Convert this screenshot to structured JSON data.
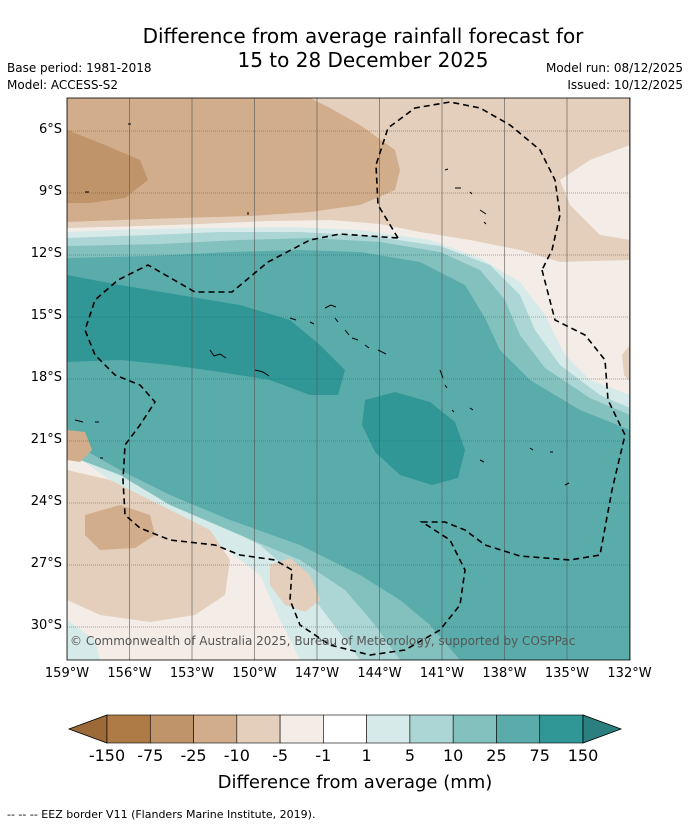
{
  "title": {
    "line1": "Difference from average rainfall forecast for",
    "line2": "15 to 28 December 2025"
  },
  "meta": {
    "base_period": "Base period: 1981-2018",
    "model": "Model: ACCESS-S2",
    "model_run": "Model run: 08/12/2025",
    "issued": "Issued: 10/12/2025"
  },
  "map": {
    "lat_labels": [
      "6°S",
      "9°S",
      "12°S",
      "15°S",
      "18°S",
      "21°S",
      "24°S",
      "27°S",
      "30°S"
    ],
    "lon_labels": [
      "159°W",
      "156°W",
      "153°W",
      "150°W",
      "147°W",
      "144°W",
      "141°W",
      "138°W",
      "135°W",
      "132°W"
    ],
    "copyright": "© Commonwealth of Australia 2025, Bureau of Meteorology, supported by COSPPac"
  },
  "colorbar": {
    "colors": [
      "#ae7a45",
      "#c0946a",
      "#d1ad8c",
      "#e3cfbc",
      "#f4ede7",
      "#ffffff",
      "#d6eae9",
      "#acd6d5",
      "#83c1bf",
      "#5aacab",
      "#319796"
    ],
    "end_low_color": "#9c6a38",
    "end_high_color": "#2b7f7e",
    "tick_labels": [
      "-150",
      "-75",
      "-25",
      "-10",
      "-5",
      "-1",
      "1",
      "5",
      "10",
      "25",
      "75",
      "150"
    ],
    "title": "Difference from average (mm)"
  },
  "footnote": "-- -- -- EEZ border V11 (Flanders Marine Institute, 2019)."
}
